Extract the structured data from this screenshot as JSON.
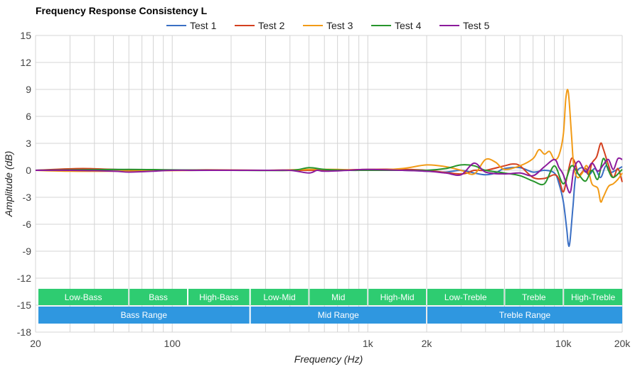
{
  "chart_data": {
    "type": "line",
    "title": "Frequency Response Consistency L",
    "xlabel": "Frequency (Hz)",
    "ylabel": "Amplitude (dB)",
    "x_scale": "log",
    "xlim": [
      20,
      20000
    ],
    "ylim": [
      -18,
      15
    ],
    "x_ticks": [
      {
        "value": 20,
        "label": "20"
      },
      {
        "value": 100,
        "label": "100"
      },
      {
        "value": 1000,
        "label": "1k"
      },
      {
        "value": 2000,
        "label": "2k"
      },
      {
        "value": 10000,
        "label": "10k"
      },
      {
        "value": 20000,
        "label": "20k"
      }
    ],
    "y_ticks": [
      15,
      12,
      9,
      6,
      3,
      0,
      -3,
      -6,
      -9,
      -12,
      -15,
      -18
    ],
    "grid": true,
    "legend_position": "top",
    "frequency_bands": [
      {
        "label": "Low-Bass",
        "from": 20,
        "to": 60
      },
      {
        "label": "Bass",
        "from": 60,
        "to": 120
      },
      {
        "label": "High-Bass",
        "from": 120,
        "to": 250
      },
      {
        "label": "Low-Mid",
        "from": 250,
        "to": 500
      },
      {
        "label": "Mid",
        "from": 500,
        "to": 1000
      },
      {
        "label": "High-Mid",
        "from": 1000,
        "to": 2000
      },
      {
        "label": "Low-Treble",
        "from": 2000,
        "to": 5000
      },
      {
        "label": "Treble",
        "from": 5000,
        "to": 10000
      },
      {
        "label": "High-Treble",
        "from": 10000,
        "to": 20000
      }
    ],
    "ranges": [
      {
        "label": "Bass Range",
        "from": 20,
        "to": 250
      },
      {
        "label": "Mid Range",
        "from": 250,
        "to": 2000
      },
      {
        "label": "Treble Range",
        "from": 2000,
        "to": 20000
      }
    ],
    "series": [
      {
        "name": "Test 1",
        "color": "#3a6fc4",
        "points": [
          [
            20,
            0
          ],
          [
            30,
            0.1
          ],
          [
            50,
            0.1
          ],
          [
            100,
            0
          ],
          [
            200,
            0
          ],
          [
            400,
            0
          ],
          [
            600,
            0
          ],
          [
            1000,
            0
          ],
          [
            1500,
            0
          ],
          [
            2000,
            -0.1
          ],
          [
            2500,
            -0.2
          ],
          [
            3000,
            0
          ],
          [
            3500,
            -0.3
          ],
          [
            4000,
            -0.5
          ],
          [
            4500,
            -0.3
          ],
          [
            5000,
            0.2
          ],
          [
            6000,
            0.3
          ],
          [
            7000,
            -0.2
          ],
          [
            8000,
            0
          ],
          [
            9000,
            -0.3
          ],
          [
            9500,
            -1.5
          ],
          [
            10000,
            -3.5
          ],
          [
            10400,
            -6.5
          ],
          [
            10600,
            -8.2
          ],
          [
            10800,
            -8
          ],
          [
            11200,
            -4
          ],
          [
            11600,
            -0.5
          ],
          [
            12500,
            0.3
          ],
          [
            13500,
            -0.5
          ],
          [
            14500,
            0.2
          ],
          [
            15500,
            -0.8
          ],
          [
            16500,
            0.5
          ],
          [
            17500,
            -0.2
          ],
          [
            18500,
            0
          ],
          [
            20000,
            0.4
          ]
        ]
      },
      {
        "name": "Test 2",
        "color": "#d4401f",
        "points": [
          [
            20,
            0
          ],
          [
            25,
            0.1
          ],
          [
            35,
            0.2
          ],
          [
            50,
            0.1
          ],
          [
            80,
            0
          ],
          [
            150,
            0.05
          ],
          [
            300,
            0
          ],
          [
            600,
            0
          ],
          [
            1000,
            0.1
          ],
          [
            1500,
            0.1
          ],
          [
            2000,
            0
          ],
          [
            3000,
            -0.4
          ],
          [
            3500,
            0
          ],
          [
            4000,
            0
          ],
          [
            5000,
            0.5
          ],
          [
            5500,
            0.7
          ],
          [
            6000,
            0.5
          ],
          [
            7000,
            -0.8
          ],
          [
            8000,
            -0.9
          ],
          [
            9000,
            -0.5
          ],
          [
            9500,
            -1
          ],
          [
            10000,
            -2.4
          ],
          [
            10500,
            -0.5
          ],
          [
            11000,
            1.3
          ],
          [
            11500,
            0.8
          ],
          [
            12000,
            -0.5
          ],
          [
            13000,
            0.2
          ],
          [
            13500,
            -0.5
          ],
          [
            14000,
            0.8
          ],
          [
            14800,
            1.5
          ],
          [
            15500,
            3
          ],
          [
            16000,
            2.4
          ],
          [
            17000,
            0.6
          ],
          [
            18000,
            -0.8
          ],
          [
            19000,
            0.2
          ],
          [
            20000,
            -1.3
          ]
        ]
      },
      {
        "name": "Test 3",
        "color": "#f29b16",
        "points": [
          [
            20,
            0
          ],
          [
            30,
            -0.1
          ],
          [
            50,
            -0.1
          ],
          [
            80,
            -0.05
          ],
          [
            150,
            0
          ],
          [
            300,
            0
          ],
          [
            500,
            0.1
          ],
          [
            700,
            0.1
          ],
          [
            1000,
            0
          ],
          [
            1500,
            0.2
          ],
          [
            2000,
            0.6
          ],
          [
            2500,
            0.4
          ],
          [
            3000,
            0
          ],
          [
            3500,
            -0.4
          ],
          [
            4000,
            1.2
          ],
          [
            4500,
            0.9
          ],
          [
            5000,
            0.1
          ],
          [
            6000,
            0.5
          ],
          [
            7000,
            1.3
          ],
          [
            7500,
            2.3
          ],
          [
            8000,
            1.8
          ],
          [
            8500,
            2.1
          ],
          [
            9000,
            1.2
          ],
          [
            9500,
            1.7
          ],
          [
            10000,
            4
          ],
          [
            10300,
            8
          ],
          [
            10600,
            8.7
          ],
          [
            11000,
            4
          ],
          [
            11300,
            0.5
          ],
          [
            11800,
            -0.8
          ],
          [
            12500,
            -0.3
          ],
          [
            13200,
            0.5
          ],
          [
            14000,
            -1.5
          ],
          [
            15000,
            -2
          ],
          [
            15500,
            -3.5
          ],
          [
            16000,
            -3
          ],
          [
            17000,
            -1.8
          ],
          [
            18000,
            -1.5
          ],
          [
            19000,
            -1
          ],
          [
            20000,
            -0.3
          ]
        ]
      },
      {
        "name": "Test 4",
        "color": "#27952c",
        "points": [
          [
            20,
            0
          ],
          [
            30,
            0.05
          ],
          [
            60,
            0.1
          ],
          [
            100,
            0.05
          ],
          [
            200,
            0
          ],
          [
            400,
            0
          ],
          [
            500,
            0.3
          ],
          [
            600,
            0.1
          ],
          [
            800,
            0
          ],
          [
            1000,
            0
          ],
          [
            1500,
            0
          ],
          [
            2000,
            0
          ],
          [
            2500,
            0.2
          ],
          [
            3000,
            0.6
          ],
          [
            3500,
            0.5
          ],
          [
            4000,
            0
          ],
          [
            5000,
            -0.3
          ],
          [
            6000,
            -0.6
          ],
          [
            7000,
            -1.2
          ],
          [
            8000,
            -1.5
          ],
          [
            9000,
            0.5
          ],
          [
            10000,
            -1.5
          ],
          [
            11000,
            0.5
          ],
          [
            12000,
            -0.5
          ],
          [
            13000,
            -1.2
          ],
          [
            14000,
            0
          ],
          [
            15000,
            -1
          ],
          [
            16000,
            1.3
          ],
          [
            17000,
            0
          ],
          [
            18000,
            -0.8
          ],
          [
            20000,
            0.1
          ]
        ]
      },
      {
        "name": "Test 5",
        "color": "#8c1a9c",
        "points": [
          [
            20,
            0
          ],
          [
            30,
            0
          ],
          [
            50,
            -0.1
          ],
          [
            60,
            -0.2
          ],
          [
            80,
            -0.1
          ],
          [
            100,
            0
          ],
          [
            150,
            0
          ],
          [
            300,
            0
          ],
          [
            400,
            0
          ],
          [
            500,
            -0.3
          ],
          [
            550,
            0
          ],
          [
            600,
            -0.1
          ],
          [
            800,
            0
          ],
          [
            1000,
            0.1
          ],
          [
            1500,
            0
          ],
          [
            2000,
            -0.1
          ],
          [
            2500,
            -0.3
          ],
          [
            3000,
            -0.5
          ],
          [
            3500,
            0.8
          ],
          [
            4000,
            -0.2
          ],
          [
            5000,
            -0.4
          ],
          [
            6000,
            -0.3
          ],
          [
            7000,
            -0.6
          ],
          [
            8000,
            0.4
          ],
          [
            9000,
            1.2
          ],
          [
            9500,
            0.3
          ],
          [
            10000,
            -0.5
          ],
          [
            10800,
            -2.5
          ],
          [
            11300,
            0
          ],
          [
            12000,
            1
          ],
          [
            13000,
            -0.2
          ],
          [
            14000,
            0.8
          ],
          [
            15000,
            -0.1
          ],
          [
            16000,
            0.6
          ],
          [
            17000,
            1.2
          ],
          [
            18000,
            0.1
          ],
          [
            19000,
            1.3
          ],
          [
            20000,
            1.2
          ]
        ]
      }
    ]
  }
}
